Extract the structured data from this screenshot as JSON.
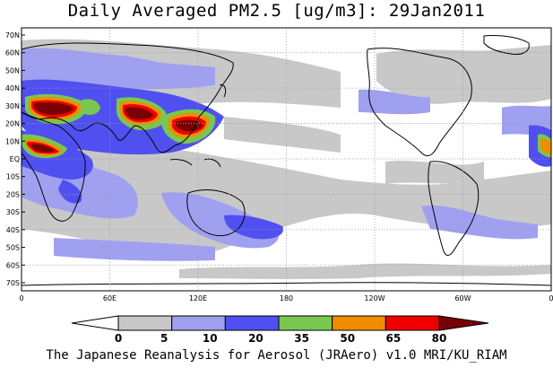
{
  "title": "Daily Averaged PM2.5 [ug/m3]: 29Jan2011",
  "footer": "The Japanese Reanalysis for Aerosol (JRAero) v1.0 MRI/KU_RIAM",
  "lat_ticks": [
    "70N",
    "60N",
    "50N",
    "40N",
    "30N",
    "20N",
    "10N",
    "EQ",
    "10S",
    "20S",
    "30S",
    "40S",
    "50S",
    "60S",
    "70S"
  ],
  "lon_ticks": [
    "0",
    "60E",
    "120E",
    "180",
    "120W",
    "60W",
    "0"
  ],
  "colorbar": {
    "labels": [
      "0",
      "5",
      "10",
      "20",
      "35",
      "50",
      "65",
      "80"
    ],
    "colors": [
      "#ffffff",
      "#c8c8c8",
      "#a0a0f0",
      "#5050f0",
      "#78c850",
      "#f08c00",
      "#f00000",
      "#780000"
    ]
  },
  "legend_scale_colors": {
    "land_outline": "#000000",
    "grid": "#999999"
  }
}
